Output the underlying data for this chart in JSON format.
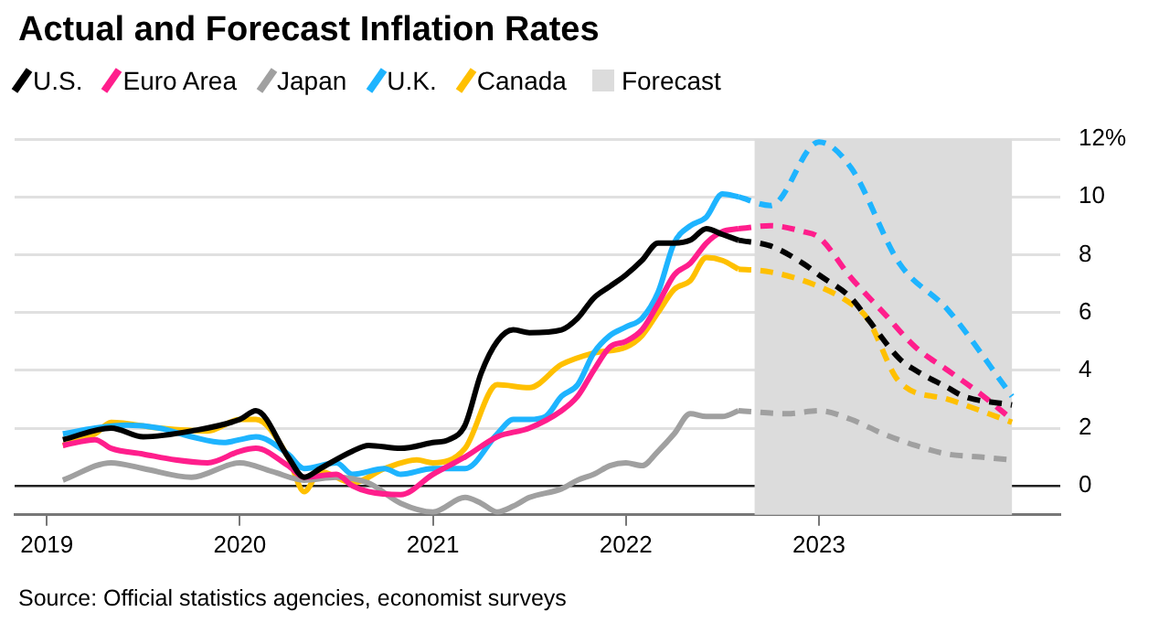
{
  "chart_data": {
    "type": "line",
    "title": "Actual and Forecast Inflation Rates",
    "annotations": [
      "Source: Official statistics agencies, economist surveys"
    ],
    "xlim": [
      "2018-11",
      "2024-04"
    ],
    "xticks": [
      "2019",
      "2020",
      "2021",
      "2022",
      "2023"
    ],
    "ylim": [
      -1,
      12
    ],
    "yticks": [
      0,
      2,
      4,
      6,
      8,
      10,
      {
        "value": 12,
        "label": "12%"
      }
    ],
    "grid": "y",
    "legend": "top left",
    "bands": [
      {
        "axis": "x",
        "from": "2022-09",
        "to": "2024-01",
        "label": "Forecast",
        "color": "#dcdcdc"
      }
    ],
    "series": [
      {
        "name": "U.S.",
        "color": "#000000",
        "line_style": "solid",
        "x": [
          "2019-02",
          "2019-05",
          "2019-07",
          "2019-10",
          "2020-01",
          "2020-02",
          "2020-04",
          "2020-05",
          "2020-06",
          "2020-08",
          "2020-09",
          "2020-11",
          "2021-01",
          "2021-02",
          "2021-03",
          "2021-04",
          "2021-05",
          "2021-06",
          "2021-07",
          "2021-09",
          "2021-10",
          "2021-11",
          "2021-12",
          "2022-01",
          "2022-02",
          "2022-03",
          "2022-04",
          "2022-05",
          "2022-06",
          "2022-07",
          "2022-08"
        ],
        "values": [
          1.6,
          2.0,
          1.7,
          1.9,
          2.3,
          2.6,
          1.0,
          0.3,
          0.6,
          1.2,
          1.4,
          1.3,
          1.5,
          1.6,
          2.1,
          3.9,
          5.0,
          5.4,
          5.3,
          5.4,
          5.8,
          6.5,
          6.9,
          7.3,
          7.8,
          8.4,
          8.4,
          8.5,
          8.9,
          8.7,
          8.5
        ]
      },
      {
        "name": "Euro Area",
        "color": "#ff1e8c",
        "line_style": "solid",
        "x": [
          "2019-02",
          "2019-04",
          "2019-05",
          "2019-07",
          "2019-09",
          "2019-11",
          "2020-01",
          "2020-02",
          "2020-04",
          "2020-05",
          "2020-07",
          "2020-08",
          "2020-09",
          "2020-11",
          "2021-01",
          "2021-03",
          "2021-05",
          "2021-07",
          "2021-09",
          "2021-10",
          "2021-11",
          "2021-12",
          "2022-01",
          "2022-02",
          "2022-03",
          "2022-04",
          "2022-05",
          "2022-06",
          "2022-07",
          "2022-08"
        ],
        "values": [
          1.4,
          1.6,
          1.3,
          1.1,
          0.9,
          0.8,
          1.2,
          1.3,
          0.7,
          0.3,
          0.4,
          0.0,
          -0.2,
          -0.3,
          0.4,
          1.0,
          1.7,
          2.0,
          2.6,
          3.1,
          4.0,
          4.8,
          5.0,
          5.4,
          6.3,
          7.3,
          7.7,
          8.4,
          8.8,
          8.9
        ]
      },
      {
        "name": "Japan",
        "color": "#a0a0a0",
        "line_style": "solid",
        "x": [
          "2019-02",
          "2019-05",
          "2019-07",
          "2019-10",
          "2020-01",
          "2020-03",
          "2020-05",
          "2020-07",
          "2020-09",
          "2020-11",
          "2021-01",
          "2021-03",
          "2021-04",
          "2021-05",
          "2021-06",
          "2021-07",
          "2021-09",
          "2021-10",
          "2021-11",
          "2021-12",
          "2022-01",
          "2022-02",
          "2022-03",
          "2022-04",
          "2022-05",
          "2022-06",
          "2022-07",
          "2022-08"
        ],
        "values": [
          0.2,
          0.8,
          0.6,
          0.3,
          0.8,
          0.5,
          0.2,
          0.3,
          0.1,
          -0.6,
          -0.9,
          -0.4,
          -0.6,
          -0.9,
          -0.7,
          -0.4,
          -0.1,
          0.2,
          0.4,
          0.7,
          0.8,
          0.7,
          1.2,
          1.8,
          2.5,
          2.4,
          2.4,
          2.6
        ]
      },
      {
        "name": "U.K.",
        "color": "#1eb4ff",
        "line_style": "solid",
        "x": [
          "2019-02",
          "2019-04",
          "2019-06",
          "2019-08",
          "2019-10",
          "2019-12",
          "2020-01",
          "2020-02",
          "2020-04",
          "2020-05",
          "2020-07",
          "2020-08",
          "2020-10",
          "2020-11",
          "2021-01",
          "2021-03",
          "2021-05",
          "2021-06",
          "2021-07",
          "2021-08",
          "2021-09",
          "2021-10",
          "2021-11",
          "2021-12",
          "2022-01",
          "2022-02",
          "2022-03",
          "2022-04",
          "2022-05",
          "2022-06",
          "2022-07",
          "2022-08"
        ],
        "values": [
          1.8,
          2.0,
          2.1,
          2.0,
          1.7,
          1.5,
          1.6,
          1.7,
          1.1,
          0.6,
          0.8,
          0.4,
          0.6,
          0.4,
          0.6,
          0.6,
          1.8,
          2.3,
          2.3,
          2.4,
          3.1,
          3.5,
          4.6,
          5.2,
          5.5,
          5.8,
          6.7,
          8.4,
          9.0,
          9.3,
          10.1,
          10.0
        ]
      },
      {
        "name": "Canada",
        "color": "#ffc000",
        "line_style": "solid",
        "x": [
          "2019-02",
          "2019-04",
          "2019-05",
          "2019-08",
          "2019-11",
          "2020-01",
          "2020-02",
          "2020-04",
          "2020-05",
          "2020-06",
          "2020-08",
          "2020-10",
          "2020-12",
          "2021-01",
          "2021-03",
          "2021-05",
          "2021-07",
          "2021-09",
          "2021-11",
          "2022-01",
          "2022-02",
          "2022-03",
          "2022-04",
          "2022-05",
          "2022-06",
          "2022-07",
          "2022-08"
        ],
        "values": [
          1.4,
          1.8,
          2.2,
          2.0,
          1.9,
          2.3,
          2.3,
          1.0,
          -0.2,
          0.5,
          0.1,
          0.6,
          0.9,
          0.8,
          1.3,
          3.5,
          3.4,
          4.2,
          4.6,
          4.8,
          5.2,
          6.0,
          6.8,
          7.1,
          7.9,
          7.8,
          7.5
        ]
      },
      {
        "color": "#000000",
        "line_style": "dashed",
        "x": [
          "2022-08",
          "2022-10",
          "2022-12",
          "2023-01",
          "2023-03",
          "2023-04",
          "2023-06",
          "2023-07",
          "2023-09",
          "2023-10",
          "2024-01"
        ],
        "values": [
          8.5,
          8.3,
          7.7,
          7.3,
          6.5,
          5.8,
          4.4,
          4.0,
          3.4,
          3.1,
          2.8
        ]
      },
      {
        "color": "#ff1e8c",
        "line_style": "dashed",
        "x": [
          "2022-08",
          "2022-10",
          "2022-12",
          "2023-01",
          "2023-03",
          "2023-05",
          "2023-07",
          "2023-09",
          "2023-11",
          "2024-01"
        ],
        "values": [
          8.9,
          9.0,
          8.8,
          8.6,
          7.2,
          6.0,
          4.8,
          4.0,
          3.2,
          2.3
        ]
      },
      {
        "color": "#a0a0a0",
        "line_style": "dashed",
        "x": [
          "2022-08",
          "2022-11",
          "2023-01",
          "2023-03",
          "2023-05",
          "2023-07",
          "2023-09",
          "2023-11",
          "2024-01"
        ],
        "values": [
          2.6,
          2.5,
          2.6,
          2.3,
          1.8,
          1.4,
          1.1,
          1.0,
          0.9
        ]
      },
      {
        "color": "#1eb4ff",
        "line_style": "dashed",
        "x": [
          "2022-08",
          "2022-10",
          "2023-01",
          "2023-03",
          "2023-06",
          "2023-09",
          "2024-01"
        ],
        "values": [
          10.0,
          9.7,
          11.9,
          11.0,
          7.7,
          6.1,
          3.1
        ]
      },
      {
        "color": "#ffc000",
        "line_style": "dashed",
        "x": [
          "2022-08",
          "2022-10",
          "2023-01",
          "2023-03",
          "2023-04",
          "2023-06",
          "2023-09",
          "2024-01"
        ],
        "values": [
          7.5,
          7.4,
          6.9,
          6.3,
          5.8,
          3.6,
          3.0,
          2.2
        ]
      }
    ]
  }
}
